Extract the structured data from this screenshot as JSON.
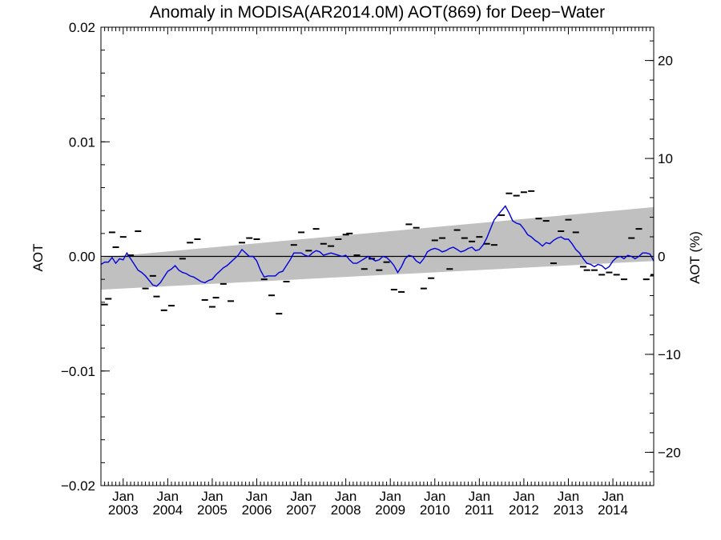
{
  "chart_data": {
    "type": "line",
    "title": "Anomaly in MODISA(AR2014.0M) AOT(869) for Deep−Water",
    "ylabel": "AOT",
    "ylabel_right": "AOT (%)",
    "xlim": [
      "2002-07",
      "2014-12"
    ],
    "ylim": [
      -0.02,
      0.02
    ],
    "ylim_right": [
      -23.4,
      23.4
    ],
    "yticks": [
      "0.02",
      "0.01",
      "0.00",
      "−0.01",
      "−0.02"
    ],
    "yticks_right": [
      "20",
      "10",
      "0",
      "−10",
      "−20"
    ],
    "xticks_month": "Jan",
    "xticks_years": [
      "2003",
      "2004",
      "2005",
      "2006",
      "2007",
      "2008",
      "2009",
      "2010",
      "2011",
      "2012",
      "2013",
      "2014"
    ],
    "grid": false,
    "band_color": "#c0c0c0",
    "line_color": "#0000dd",
    "zero_line_color": "#000000",
    "band": {
      "start": {
        "x": "2002-07",
        "upper": -0.0001,
        "lower": -0.0029
      },
      "end": {
        "x": "2014-12",
        "upper": 0.0043,
        "lower": -0.0004
      }
    },
    "series": [
      {
        "kind": "line",
        "values": [
          [
            "2002-07",
            -0.0007
          ],
          [
            "2002-08",
            -0.0005
          ],
          [
            "2002-09",
            -0.0005
          ],
          [
            "2002-10",
            -0.0001
          ],
          [
            "2002-11",
            -0.0006
          ],
          [
            "2002-12",
            -0.0002
          ],
          [
            "2003-01",
            -0.0003
          ],
          [
            "2003-02",
            0.0003
          ],
          [
            "2003-03",
            -0.0002
          ],
          [
            "2003-04",
            -0.0007
          ],
          [
            "2003-05",
            -0.0012
          ],
          [
            "2003-06",
            -0.0014
          ],
          [
            "2003-07",
            -0.0017
          ],
          [
            "2003-08",
            -0.0021
          ],
          [
            "2003-09",
            -0.0025
          ],
          [
            "2003-10",
            -0.0026
          ],
          [
            "2003-11",
            -0.0023
          ],
          [
            "2003-12",
            -0.0018
          ],
          [
            "2004-01",
            -0.0013
          ],
          [
            "2004-02",
            -0.0011
          ],
          [
            "2004-03",
            -0.0008
          ],
          [
            "2004-04",
            -0.0012
          ],
          [
            "2004-05",
            -0.0014
          ],
          [
            "2004-06",
            -0.0015
          ],
          [
            "2004-07",
            -0.0017
          ],
          [
            "2004-08",
            -0.0018
          ],
          [
            "2004-09",
            -0.002
          ],
          [
            "2004-10",
            -0.0022
          ],
          [
            "2004-11",
            -0.0023
          ],
          [
            "2004-12",
            -0.0021
          ],
          [
            "2005-01",
            -0.002
          ],
          [
            "2005-02",
            -0.0016
          ],
          [
            "2005-03",
            -0.0013
          ],
          [
            "2005-04",
            -0.001
          ],
          [
            "2005-05",
            -0.0008
          ],
          [
            "2005-06",
            -0.0005
          ],
          [
            "2005-07",
            -0.0002
          ],
          [
            "2005-08",
            0.0001
          ],
          [
            "2005-09",
            0.0006
          ],
          [
            "2005-10",
            0.0003
          ],
          [
            "2005-11",
            0.0
          ],
          [
            "2005-12",
            0.0
          ],
          [
            "2006-01",
            -0.0004
          ],
          [
            "2006-02",
            -0.0012
          ],
          [
            "2006-03",
            -0.0018
          ],
          [
            "2006-04",
            -0.0017
          ],
          [
            "2006-05",
            -0.0017
          ],
          [
            "2006-06",
            -0.0017
          ],
          [
            "2006-07",
            -0.0014
          ],
          [
            "2006-08",
            -0.0013
          ],
          [
            "2006-09",
            -0.0008
          ],
          [
            "2006-10",
            -0.0003
          ],
          [
            "2006-11",
            0.0003
          ],
          [
            "2006-12",
            0.0003
          ],
          [
            "2007-01",
            0.0003
          ],
          [
            "2007-02",
            0.0001
          ],
          [
            "2007-03",
            0.0
          ],
          [
            "2007-04",
            0.0003
          ],
          [
            "2007-05",
            0.0005
          ],
          [
            "2007-06",
            0.0004
          ],
          [
            "2007-07",
            0.0001
          ],
          [
            "2007-08",
            0.0002
          ],
          [
            "2007-09",
            0.0003
          ],
          [
            "2007-10",
            0.0002
          ],
          [
            "2007-11",
            0.0001
          ],
          [
            "2007-12",
            0.0
          ],
          [
            "2008-01",
            0.0001
          ],
          [
            "2008-02",
            -0.0003
          ],
          [
            "2008-03",
            -0.0006
          ],
          [
            "2008-04",
            -0.0006
          ],
          [
            "2008-05",
            -0.0004
          ],
          [
            "2008-06",
            -0.0002
          ],
          [
            "2008-07",
            0.0
          ],
          [
            "2008-08",
            -0.0002
          ],
          [
            "2008-09",
            -0.0004
          ],
          [
            "2008-10",
            -0.0003
          ],
          [
            "2008-11",
            0.0
          ],
          [
            "2008-12",
            -0.0001
          ],
          [
            "2009-01",
            -0.0004
          ],
          [
            "2009-02",
            -0.0008
          ],
          [
            "2009-03",
            -0.0014
          ],
          [
            "2009-04",
            -0.0009
          ],
          [
            "2009-05",
            -0.0002
          ],
          [
            "2009-06",
            0.0001
          ],
          [
            "2009-07",
            0.0
          ],
          [
            "2009-08",
            -0.0004
          ],
          [
            "2009-09",
            -0.0006
          ],
          [
            "2009-10",
            -0.0002
          ],
          [
            "2009-11",
            0.0004
          ],
          [
            "2009-12",
            0.0006
          ],
          [
            "2010-01",
            0.0007
          ],
          [
            "2010-02",
            0.0006
          ],
          [
            "2010-03",
            0.0004
          ],
          [
            "2010-04",
            0.0005
          ],
          [
            "2010-05",
            0.0007
          ],
          [
            "2010-06",
            0.0008
          ],
          [
            "2010-07",
            0.0006
          ],
          [
            "2010-08",
            0.0004
          ],
          [
            "2010-09",
            0.0005
          ],
          [
            "2010-10",
            0.0007
          ],
          [
            "2010-11",
            0.0008
          ],
          [
            "2010-12",
            0.0005
          ],
          [
            "2011-01",
            0.0006
          ],
          [
            "2011-02",
            0.001
          ],
          [
            "2011-03",
            0.0016
          ],
          [
            "2011-04",
            0.0024
          ],
          [
            "2011-05",
            0.0032
          ],
          [
            "2011-06",
            0.0036
          ],
          [
            "2011-07",
            0.004
          ],
          [
            "2011-08",
            0.0044
          ],
          [
            "2011-09",
            0.0038
          ],
          [
            "2011-10",
            0.0031
          ],
          [
            "2011-11",
            0.0029
          ],
          [
            "2011-12",
            0.0028
          ],
          [
            "2012-01",
            0.0024
          ],
          [
            "2012-02",
            0.0019
          ],
          [
            "2012-03",
            0.0017
          ],
          [
            "2012-04",
            0.0014
          ],
          [
            "2012-05",
            0.0012
          ],
          [
            "2012-06",
            0.0009
          ],
          [
            "2012-07",
            0.0012
          ],
          [
            "2012-08",
            0.0011
          ],
          [
            "2012-09",
            0.0014
          ],
          [
            "2012-10",
            0.0016
          ],
          [
            "2012-11",
            0.0017
          ],
          [
            "2012-12",
            0.0015
          ],
          [
            "2013-01",
            0.0015
          ],
          [
            "2013-02",
            0.0011
          ],
          [
            "2013-03",
            0.0006
          ],
          [
            "2013-04",
            0.0003
          ],
          [
            "2013-05",
            -0.0002
          ],
          [
            "2013-06",
            -0.0006
          ],
          [
            "2013-07",
            -0.0007
          ],
          [
            "2013-08",
            -0.0009
          ],
          [
            "2013-09",
            -0.0007
          ],
          [
            "2013-10",
            -0.0008
          ],
          [
            "2013-11",
            -0.0011
          ],
          [
            "2013-12",
            -0.0009
          ],
          [
            "2014-01",
            -0.0004
          ],
          [
            "2014-02",
            -0.0001
          ],
          [
            "2014-03",
            0.0
          ],
          [
            "2014-04",
            -0.0002
          ],
          [
            "2014-05",
            0.0001
          ],
          [
            "2014-06",
            0.0
          ],
          [
            "2014-07",
            -0.0002
          ],
          [
            "2014-08",
            0.0
          ],
          [
            "2014-09",
            0.0003
          ],
          [
            "2014-10",
            0.0003
          ],
          [
            "2014-11",
            0.0002
          ],
          [
            "2014-12",
            -0.0004
          ]
        ]
      },
      {
        "kind": "dash-marks",
        "values": [
          [
            "2002-08",
            -0.0042
          ],
          [
            "2002-09",
            -0.0037
          ],
          [
            "2002-10",
            0.0021
          ],
          [
            "2002-11",
            0.0008
          ],
          [
            "2003-01",
            0.0017
          ],
          [
            "2003-03",
            0.0001
          ],
          [
            "2003-05",
            0.0022
          ],
          [
            "2003-07",
            -0.0028
          ],
          [
            "2003-09",
            -0.0017
          ],
          [
            "2003-10",
            -0.0035
          ],
          [
            "2003-12",
            -0.0047
          ],
          [
            "2004-02",
            -0.0043
          ],
          [
            "2004-05",
            -0.0002
          ],
          [
            "2004-07",
            0.0012
          ],
          [
            "2004-09",
            0.0015
          ],
          [
            "2004-11",
            -0.0038
          ],
          [
            "2005-01",
            -0.0044
          ],
          [
            "2005-02",
            -0.0036
          ],
          [
            "2005-04",
            -0.0024
          ],
          [
            "2005-06",
            -0.0039
          ],
          [
            "2005-09",
            0.0012
          ],
          [
            "2005-11",
            0.0016
          ],
          [
            "2006-01",
            0.0015
          ],
          [
            "2006-03",
            -0.002
          ],
          [
            "2006-05",
            -0.0034
          ],
          [
            "2006-07",
            -0.005
          ],
          [
            "2006-09",
            -0.0022
          ],
          [
            "2006-11",
            0.001
          ],
          [
            "2007-01",
            0.0021
          ],
          [
            "2007-03",
            0.0005
          ],
          [
            "2007-05",
            0.0024
          ],
          [
            "2007-07",
            0.0011
          ],
          [
            "2007-09",
            0.0009
          ],
          [
            "2007-11",
            0.0015
          ],
          [
            "2008-01",
            0.0019
          ],
          [
            "2008-02",
            0.002
          ],
          [
            "2008-04",
            0.0001
          ],
          [
            "2008-06",
            -0.0011
          ],
          [
            "2008-08",
            -0.0002
          ],
          [
            "2008-10",
            -0.0012
          ],
          [
            "2008-12",
            -0.0005
          ],
          [
            "2009-02",
            -0.0029
          ],
          [
            "2009-04",
            -0.0031
          ],
          [
            "2009-06",
            0.0028
          ],
          [
            "2009-08",
            0.0025
          ],
          [
            "2009-10",
            -0.0028
          ],
          [
            "2009-12",
            -0.0019
          ],
          [
            "2010-01",
            0.0014
          ],
          [
            "2010-03",
            0.0016
          ],
          [
            "2010-05",
            -0.0011
          ],
          [
            "2010-07",
            0.0023
          ],
          [
            "2010-09",
            0.0016
          ],
          [
            "2010-11",
            0.0013
          ],
          [
            "2011-01",
            0.0017
          ],
          [
            "2011-03",
            0.0011
          ],
          [
            "2011-05",
            0.001
          ],
          [
            "2011-07",
            0.0036
          ],
          [
            "2011-09",
            0.0055
          ],
          [
            "2011-11",
            0.0053
          ],
          [
            "2012-01",
            0.0056
          ],
          [
            "2012-03",
            0.0057
          ],
          [
            "2012-05",
            0.0033
          ],
          [
            "2012-07",
            0.0031
          ],
          [
            "2012-09",
            -0.0006
          ],
          [
            "2012-11",
            0.0022
          ],
          [
            "2013-01",
            0.0032
          ],
          [
            "2013-03",
            0.0021
          ],
          [
            "2013-05",
            -0.0009
          ],
          [
            "2013-06",
            -0.0012
          ],
          [
            "2013-08",
            -0.0012
          ],
          [
            "2013-10",
            -0.0016
          ],
          [
            "2013-12",
            -0.0014
          ],
          [
            "2014-02",
            -0.0016
          ],
          [
            "2014-04",
            -0.002
          ],
          [
            "2014-06",
            0.0016
          ],
          [
            "2014-08",
            0.0024
          ],
          [
            "2014-10",
            -0.002
          ],
          [
            "2014-12",
            -0.0016
          ]
        ]
      }
    ]
  }
}
